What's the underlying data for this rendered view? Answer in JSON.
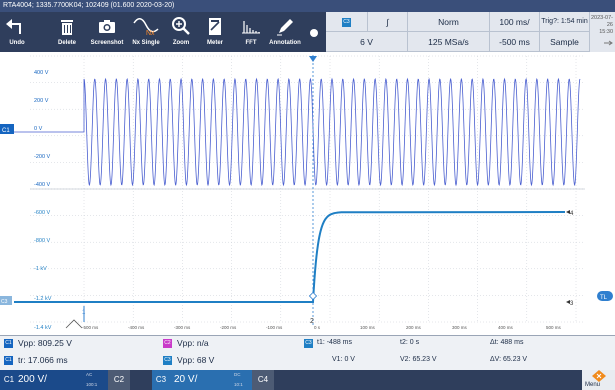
{
  "window": {
    "title": "RTA4004; 1335.7700K04; 102409 (01.600 2020-03-20)"
  },
  "toolbar": {
    "tools": [
      {
        "label": "Undo",
        "icon": "undo-icon"
      },
      {
        "label": "Delete",
        "icon": "trash-icon"
      },
      {
        "label": "Screenshot",
        "icon": "camera-icon"
      },
      {
        "label": "Nx Single",
        "icon": "nx-single-icon",
        "icon_text": "Nx"
      },
      {
        "label": "Zoom",
        "icon": "zoom-icon"
      },
      {
        "label": "Meter",
        "icon": "meter-icon"
      },
      {
        "label": "FFT",
        "icon": "fft-icon"
      },
      {
        "label": "Annotation",
        "icon": "pen-icon"
      }
    ]
  },
  "acquisition": {
    "channel": "C3",
    "trigger_slope": "∫",
    "level": "6 V",
    "trigger_mode": "Norm",
    "sample_rate": "125 MSa/s",
    "time_scale": "100 ms/",
    "position": "-500 ms",
    "trig_time": "Trig?: 1:54 min",
    "acq_mode": "Sample",
    "date": "2023-07-26",
    "time": "15:30"
  },
  "plot": {
    "c1_y_labels": [
      "400 V",
      "200 V",
      "0 V",
      "-200 V",
      "-400 V"
    ],
    "c3_y_labels": [
      "-600 V",
      "-800 V",
      "-1 kV",
      "-1.2 kV",
      "-1.4 kV"
    ],
    "x_labels": [
      "-500 ms",
      "-400 ms",
      "-300 ms",
      "-200 ms",
      "-100 ms",
      "0 s",
      "100 ms",
      "200 ms",
      "300 ms",
      "400 ms",
      "500 ms"
    ],
    "c1_marker": "C1",
    "c3_marker": "C3",
    "tl_marker": "TL",
    "cursor_labels": [
      "1",
      "2",
      "4",
      "3"
    ],
    "colors": {
      "c1": "#1565c0",
      "c1_wave": "#4a5fd0",
      "c3": "#1f7fc4",
      "grid": "#c9ced6",
      "cursor": "#2f7fcf"
    }
  },
  "measurements": {
    "m1": {
      "chip": "C1",
      "text": "Vpp: 809.25 V",
      "color": "#1565c0"
    },
    "m2": {
      "chip": "C2",
      "text": "Vpp: n/a",
      "color": "#c93bc9"
    },
    "m3": {
      "chip": "C1",
      "text": "tr: 17.066 ms",
      "color": "#1565c0"
    },
    "m4": {
      "chip": "C3",
      "text": "Vpp: 68 V",
      "color": "#1f7fc4"
    },
    "cursor": {
      "chip": "C3",
      "t1": "t1: -488 ms",
      "t2": "t2: 0 s",
      "dt": "Δt: 488 ms",
      "v1": "V1: 0 V",
      "v2": "V2: 65.23 V",
      "dv": "ΔV: 65.23 V"
    }
  },
  "channels": {
    "c1": {
      "label": "C1",
      "scale": "200 V/",
      "coupling": "AC",
      "probe": "100:1"
    },
    "c2": {
      "label": "C2"
    },
    "c3": {
      "label": "C3",
      "scale": "20 V/",
      "coupling": "DC",
      "probe": "10:1"
    },
    "c4": {
      "label": "C4"
    },
    "menu": {
      "label": "Menu",
      "icon": "rs-logo-icon"
    }
  }
}
